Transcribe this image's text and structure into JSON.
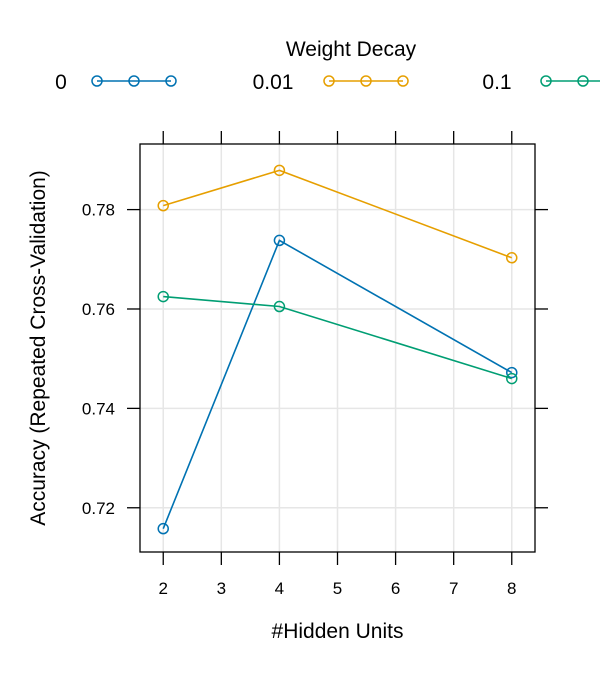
{
  "chart_data": {
    "type": "line",
    "title": "",
    "xlabel": "#Hidden Units",
    "ylabel": "Accuracy (Repeated Cross-Validation)",
    "x": [
      2,
      4,
      8
    ],
    "xticks": [
      2,
      3,
      4,
      5,
      6,
      7,
      8
    ],
    "xlim": [
      1.6,
      8.4
    ],
    "yticks": [
      0.72,
      0.74,
      0.76,
      0.78
    ],
    "ytick_labels": [
      "0.72",
      "0.74",
      "0.76",
      "0.78"
    ],
    "ylim": [
      0.7111,
      0.7932
    ],
    "grid": true,
    "legend": {
      "title": "Weight Decay",
      "placement": "top",
      "entries": [
        "0",
        "0.01",
        "0.1"
      ]
    },
    "series": [
      {
        "name": "0",
        "color": "#0072B2",
        "values": [
          0.7158,
          0.7738,
          0.7472
        ]
      },
      {
        "name": "0.01",
        "color": "#E69F00",
        "values": [
          0.7808,
          0.7879,
          0.7703
        ]
      },
      {
        "name": "0.1",
        "color": "#009E73",
        "values": [
          0.7625,
          0.7605,
          0.746
        ]
      }
    ]
  }
}
